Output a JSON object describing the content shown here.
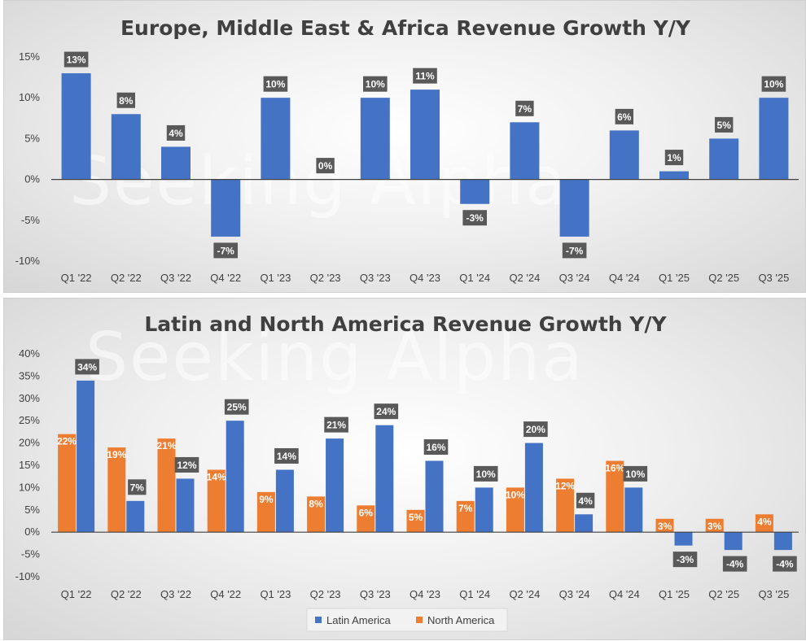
{
  "watermark": "Seeking Alpha",
  "colors": {
    "latin": "#4472C4",
    "north": "#ED7D31",
    "label_bg": "#595959",
    "axis": "#404040"
  },
  "chart_data": [
    {
      "type": "bar",
      "title": "Europe, Middle East & Africa Revenue Growth Y/Y",
      "categories": [
        "Q1 '22",
        "Q2 '22",
        "Q3 '22",
        "Q4 '22",
        "Q1 '23",
        "Q2 '23",
        "Q3 '23",
        "Q4 '23",
        "Q1 '24",
        "Q2 '24",
        "Q3 '24",
        "Q4 '24",
        "Q1 '25",
        "Q2 '25",
        "Q3 '25"
      ],
      "series": [
        {
          "values": [
            13,
            8,
            4,
            -7,
            10,
            0,
            10,
            11,
            -3,
            7,
            -7,
            6,
            1,
            5,
            10
          ]
        }
      ],
      "data_labels": [
        "13%",
        "8%",
        "4%",
        "-7%",
        "10%",
        "0%",
        "10%",
        "11%",
        "-3%",
        "7%",
        "-7%",
        "6%",
        "1%",
        "5%",
        "10%"
      ],
      "ylim": [
        -10,
        15
      ],
      "yticks": [
        15,
        10,
        5,
        0,
        -5,
        -10
      ],
      "ytick_labels": [
        "15%",
        "10%",
        "5%",
        "0%",
        "-5%",
        "-10%"
      ],
      "legend": null
    },
    {
      "type": "bar",
      "title": "Latin and North America Revenue Growth Y/Y",
      "categories": [
        "Q1 '22",
        "Q2 '22",
        "Q3 '22",
        "Q4 '22",
        "Q1 '23",
        "Q2 '23",
        "Q3 '23",
        "Q4 '23",
        "Q1 '24",
        "Q2 '24",
        "Q3 '24",
        "Q4 '24",
        "Q1 '25",
        "Q2 '25",
        "Q3 '25"
      ],
      "series": [
        {
          "name": "Latin America",
          "values": [
            34,
            7,
            12,
            25,
            14,
            21,
            24,
            16,
            10,
            20,
            4,
            10,
            -3,
            -4,
            -4
          ],
          "data_labels": [
            "34%",
            "7%",
            "12%",
            "25%",
            "14%",
            "21%",
            "24%",
            "16%",
            "10%",
            "20%",
            "4%",
            "10%",
            "-3%",
            "-4%",
            "-4%"
          ]
        },
        {
          "name": "North America",
          "values": [
            22,
            19,
            21,
            14,
            9,
            8,
            6,
            5,
            7,
            10,
            12,
            16,
            3,
            3,
            4
          ],
          "data_labels": [
            "22%",
            "19%",
            "21%",
            "14%",
            "9%",
            "8%",
            "6%",
            "5%",
            "7%",
            "10%",
            "12%",
            "16%",
            "3%",
            "3%",
            "4%"
          ]
        }
      ],
      "ylim": [
        -10,
        40
      ],
      "yticks": [
        40,
        35,
        30,
        25,
        20,
        15,
        10,
        5,
        0,
        -5,
        -10
      ],
      "ytick_labels": [
        "40%",
        "35%",
        "30%",
        "25%",
        "20%",
        "15%",
        "10%",
        "5%",
        "0%",
        "-5%",
        "-10%"
      ],
      "legend": "bottom-center"
    }
  ]
}
